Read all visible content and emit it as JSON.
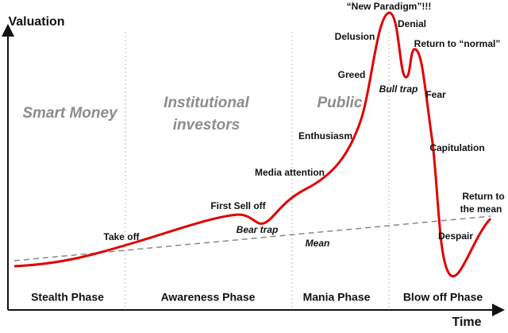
{
  "axes": {
    "y_label": "Valuation",
    "x_label": "Time"
  },
  "groups": [
    {
      "lines": [
        "Smart Money"
      ]
    },
    {
      "lines": [
        "Institutional",
        "investors"
      ]
    },
    {
      "lines": [
        "Public"
      ]
    }
  ],
  "phases": [
    "Stealth Phase",
    "Awareness Phase",
    "Mania Phase",
    "Blow off Phase"
  ],
  "annotations": [
    "Take off",
    "First Sell off",
    "Bear trap",
    "Media attention",
    "Enthusiasm",
    "Greed",
    "Delusion",
    "“New Paradigm”!!!",
    "Denial",
    "Bull trap",
    "Return to “normal”",
    "Fear",
    "Capitulation",
    "Despair"
  ],
  "return_label": [
    "Return to",
    "the mean"
  ],
  "mean_label": "Mean"
}
